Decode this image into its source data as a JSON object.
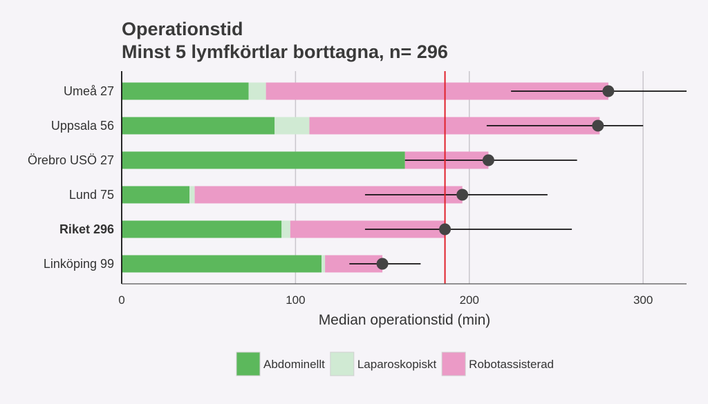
{
  "chart_data": {
    "type": "bar",
    "stacked": true,
    "orientation": "horizontal",
    "title": "Operationstid",
    "subtitle": "Minst 5 lymfkörtlar borttagna, n= 296",
    "xlabel": "Median operationstid (min)",
    "xlim": [
      0,
      325
    ],
    "xticks": [
      0,
      100,
      200,
      300
    ],
    "grid": "vertical",
    "legend_position": "bottom",
    "categories": [
      "Umeå 27",
      "Uppsala 56",
      "Örebro USÖ 27",
      "Lund 75",
      "Riket 296",
      "Linköping 99"
    ],
    "highlight_category": "Riket 296",
    "series": [
      {
        "name": "Abdominellt",
        "color": "#5cb85c",
        "values": [
          73,
          88,
          163,
          39,
          92,
          115
        ]
      },
      {
        "name": "Laparoskopiskt",
        "color": "#d0ead3",
        "values": [
          10,
          20,
          0,
          3,
          5,
          2
        ]
      },
      {
        "name": "Robotassisterad",
        "color": "#eb9ac6",
        "values": [
          197,
          167,
          48,
          154,
          89,
          33
        ]
      }
    ],
    "median": [
      280,
      274,
      211,
      196,
      186,
      150
    ],
    "interval_low": [
      224,
      210,
      163,
      140,
      140,
      131
    ],
    "interval_high": [
      325,
      300,
      262,
      245,
      259,
      172
    ],
    "reference_line": {
      "value": 186,
      "color": "#e0202a"
    },
    "point_color": "#444444"
  }
}
